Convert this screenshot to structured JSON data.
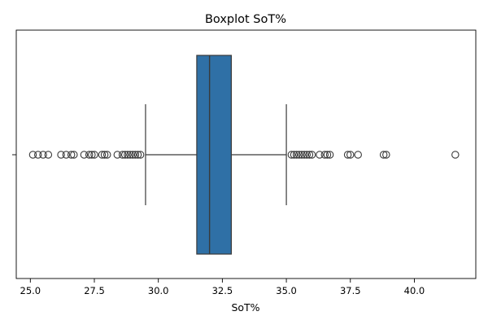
{
  "chart_data": {
    "type": "box",
    "title": "Boxplot SoT%",
    "xlabel": "SoT%",
    "ylabel": "",
    "xlim": [
      24.45,
      42.4
    ],
    "xticks": [
      25.0,
      27.5,
      30.0,
      32.5,
      35.0,
      37.5,
      40.0
    ],
    "xtick_labels": [
      "25.0",
      "27.5",
      "30.0",
      "32.5",
      "35.0",
      "37.5",
      "40.0"
    ],
    "yticks": [
      ""
    ],
    "grid": false,
    "box_color": "#2f70a6",
    "line_color": "#3a3a3a",
    "box": {
      "whisker_low": 29.5,
      "q1": 31.5,
      "median": 32.0,
      "q3": 32.85,
      "whisker_high": 35.0
    },
    "outliers": [
      25.1,
      25.3,
      25.5,
      25.7,
      26.2,
      26.4,
      26.6,
      26.7,
      27.1,
      27.3,
      27.4,
      27.5,
      27.8,
      27.9,
      28.0,
      28.4,
      28.6,
      28.7,
      28.8,
      28.9,
      29.0,
      29.1,
      29.2,
      29.3,
      35.2,
      35.3,
      35.4,
      35.5,
      35.6,
      35.7,
      35.8,
      35.9,
      36.0,
      36.3,
      36.5,
      36.6,
      36.7,
      37.4,
      37.5,
      37.8,
      38.8,
      38.9,
      41.6
    ]
  }
}
